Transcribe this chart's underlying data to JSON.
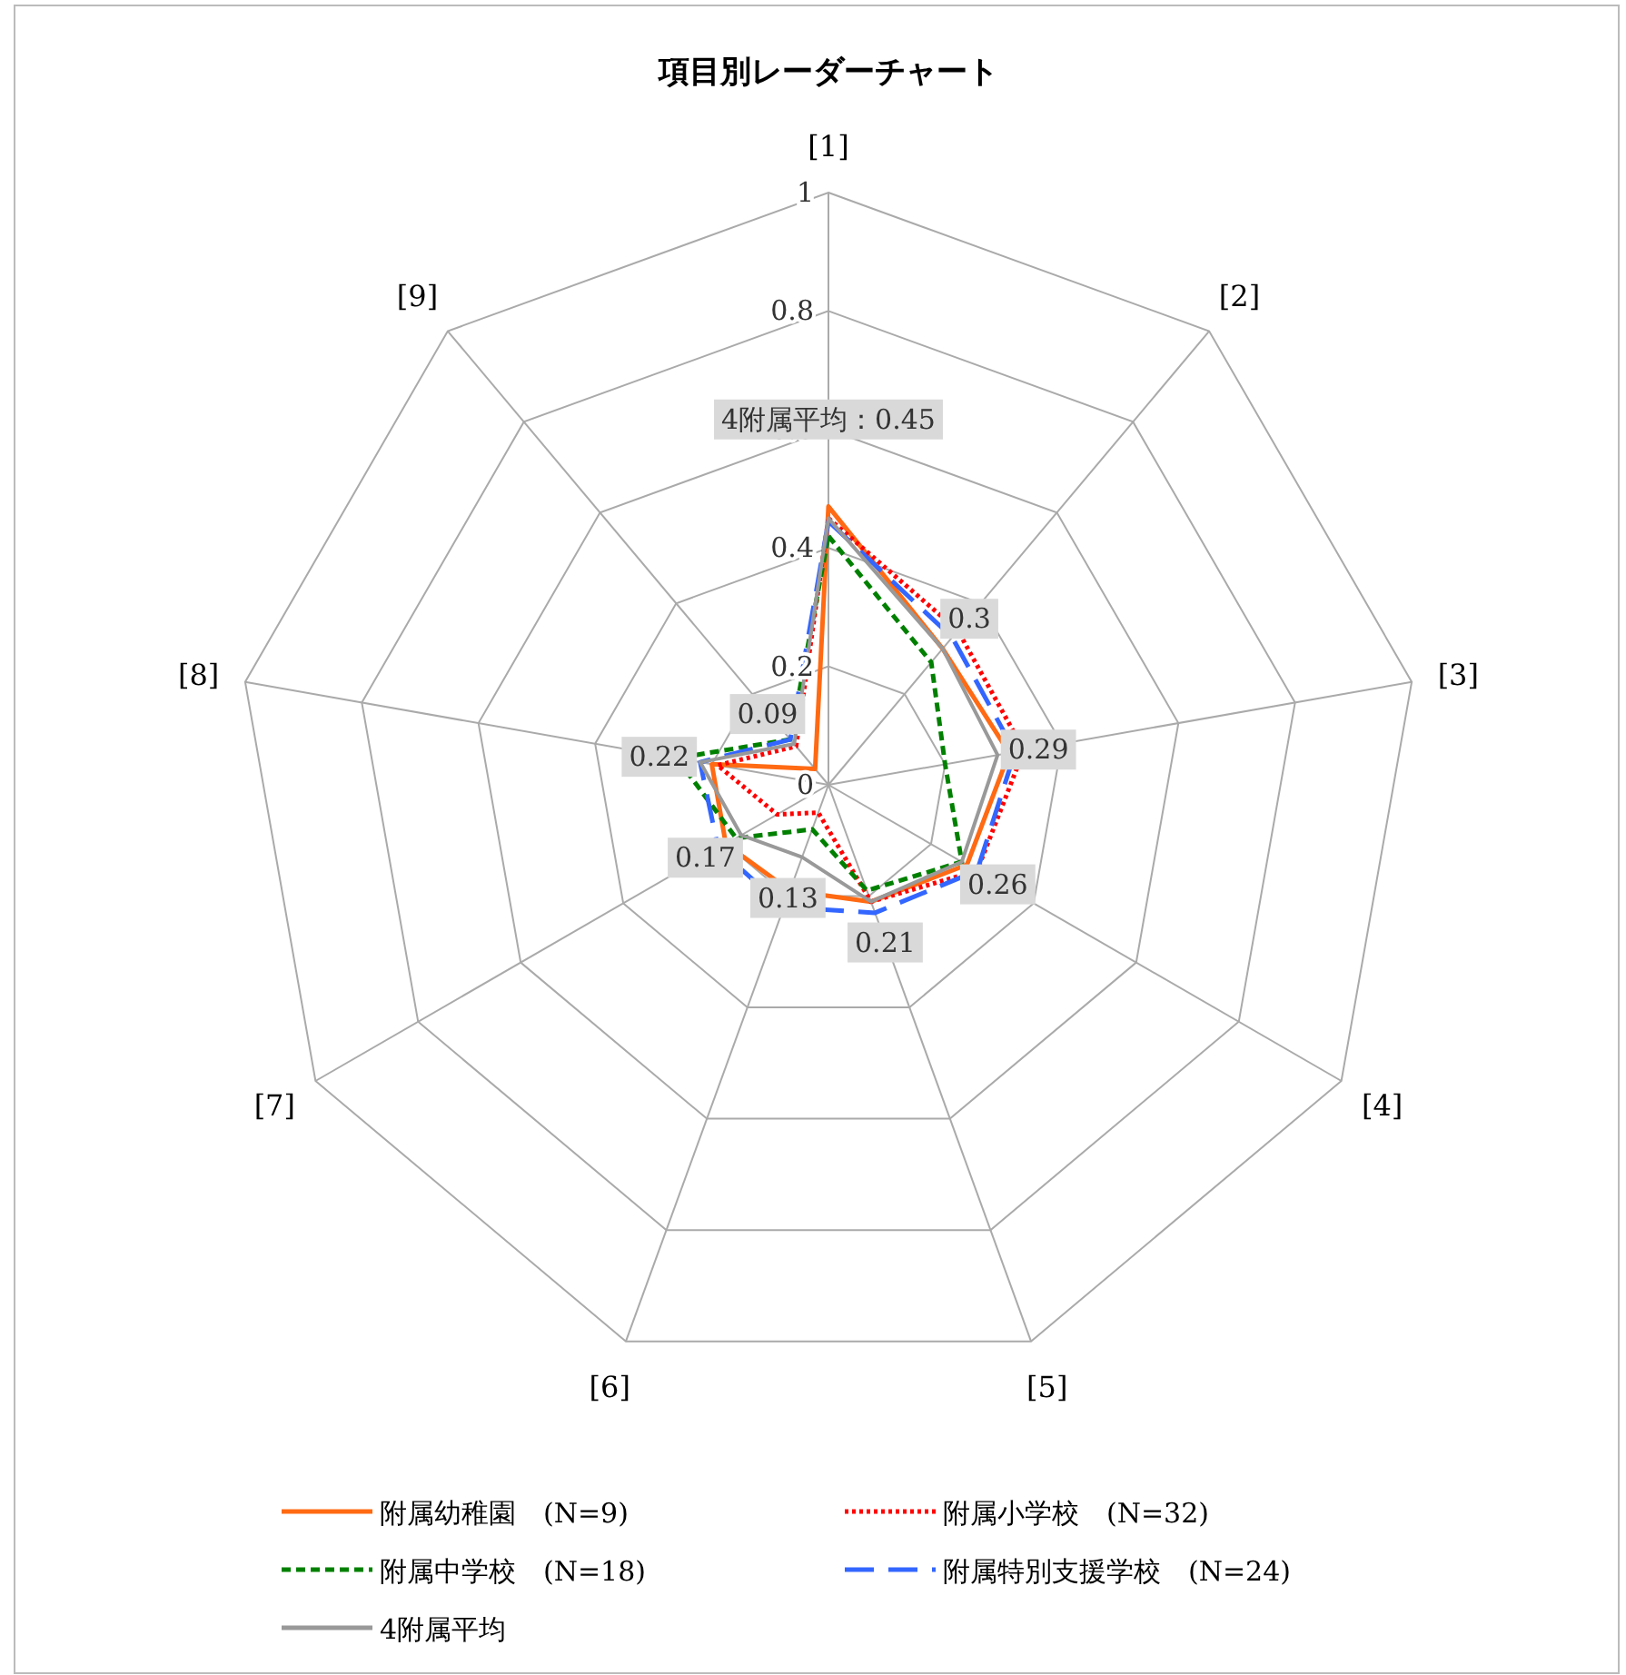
{
  "chart_data": {
    "type": "radar",
    "title": "項目別レーダーチャート",
    "categories": [
      "[1]",
      "[2]",
      "[3]",
      "[4]",
      "[5]",
      "[6]",
      "[7]",
      "[8]",
      "[9]"
    ],
    "ylim": [
      0,
      1
    ],
    "yticks": [
      0,
      0.2,
      0.4,
      0.6,
      0.8,
      1
    ],
    "grid": true,
    "legend": "bottom",
    "series": [
      {
        "name": "附属幼稚園　(N=9)",
        "color": "#ff6a13",
        "line_style": "solid",
        "values": [
          0.47,
          0.3,
          0.31,
          0.27,
          0.21,
          0.19,
          0.2,
          0.2,
          0.035
        ]
      },
      {
        "name": "附属小学校　(N=32)",
        "color": "#ff0000",
        "line_style": "dotted",
        "values": [
          0.45,
          0.34,
          0.335,
          0.29,
          0.21,
          0.05,
          0.1,
          0.19,
          0.085
        ]
      },
      {
        "name": "附属中学校　(N=18)",
        "color": "#008000",
        "line_style": "dashed",
        "values": [
          0.42,
          0.27,
          0.2,
          0.26,
          0.19,
          0.08,
          0.18,
          0.26,
          0.1
        ]
      },
      {
        "name": "附属特別支援学校　(N=24)",
        "color": "#3366ff",
        "line_style": "longdash",
        "values": [
          0.445,
          0.325,
          0.32,
          0.29,
          0.23,
          0.22,
          0.215,
          0.22,
          0.1
        ]
      },
      {
        "name": "4附属平均",
        "color": "#999999",
        "line_style": "solid",
        "values": [
          0.45,
          0.3,
          0.29,
          0.26,
          0.21,
          0.13,
          0.17,
          0.22,
          0.09
        ],
        "value_labels": [
          "4附属平均：0.45",
          "0.3",
          "0.29",
          "0.26",
          "0.21",
          "0.13",
          "0.17",
          "0.22",
          "0.09"
        ]
      }
    ]
  }
}
